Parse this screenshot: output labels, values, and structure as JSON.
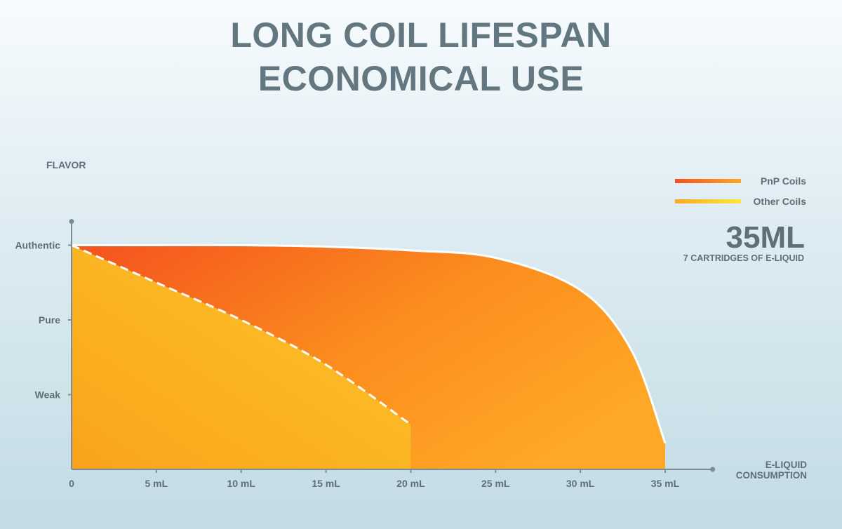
{
  "title": {
    "line1": "LONG COIL LIFESPAN",
    "line2": "ECONOMICAL USE"
  },
  "chart_data": {
    "type": "area",
    "ylabel": "FLAVOR",
    "xlabel": [
      "E-LIQUID",
      "CONSUMPTION"
    ],
    "x_ticks": [
      "0",
      "5 mL",
      "10 mL",
      "15 mL",
      "20 mL",
      "25 mL",
      "30 mL",
      "35 mL"
    ],
    "x_tick_values": [
      0,
      5,
      10,
      15,
      20,
      25,
      30,
      35
    ],
    "y_ticks": [
      "Authentic",
      "Pure",
      "Weak"
    ],
    "y_tick_values": [
      3,
      2,
      1
    ],
    "xlim": [
      0,
      38
    ],
    "ylim": [
      0,
      3.6
    ],
    "series": [
      {
        "name": "PnP Coils",
        "color_start": "#f4511e",
        "color_end": "#ffa726",
        "x": [
          0,
          5,
          10,
          15,
          20,
          25,
          30,
          33,
          35,
          35
        ],
        "y": [
          3,
          3.0,
          3.0,
          2.98,
          2.93,
          2.83,
          2.4,
          1.6,
          0.35,
          0
        ]
      },
      {
        "name": "Other Coils",
        "color_start": "#f9a825",
        "color_end": "#fdd835",
        "x": [
          0,
          5,
          10,
          15,
          20,
          20
        ],
        "y": [
          3,
          2.5,
          2.0,
          1.4,
          0.6,
          0
        ]
      }
    ],
    "legend_position": "top-right",
    "grid": false
  },
  "annotation": {
    "value": "35ML",
    "caption": "7 CARTRIDGES OF E-LIQUID"
  }
}
